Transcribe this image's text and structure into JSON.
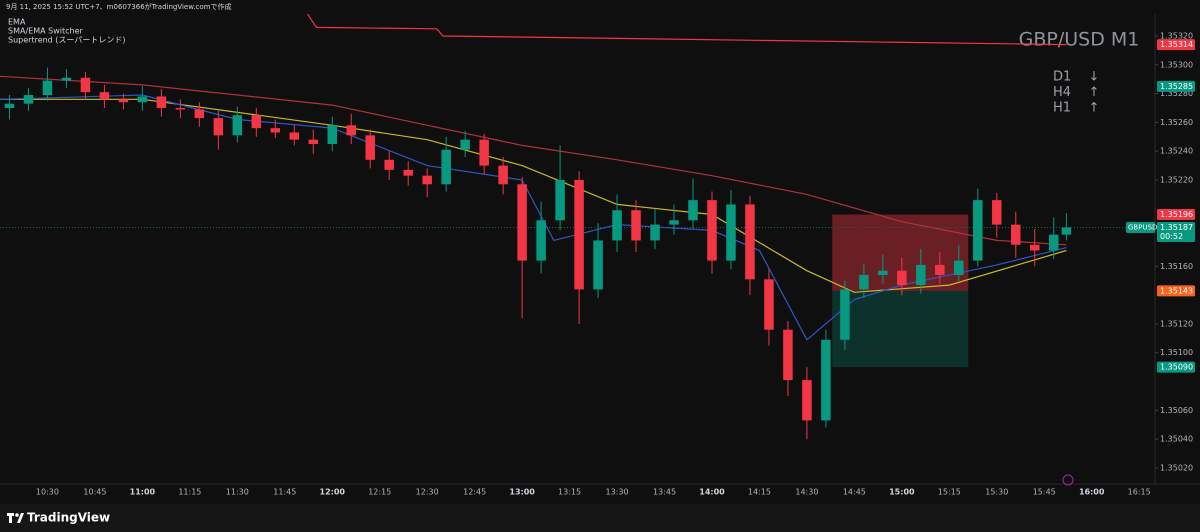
{
  "header": "9月 11, 2025 15:52 UTC+7、m0607366がTradingView.comで作成",
  "footer": "TradingView",
  "chart_data": {
    "type": "candlestick",
    "legend": [
      "EMA",
      "SMA/EMA Switcher",
      "Supertrend (スーパートレンド)"
    ],
    "title": "GBP/USD M1",
    "trend": [
      {
        "tf": "D1",
        "dir": "↓"
      },
      {
        "tf": "H4",
        "dir": "↑"
      },
      {
        "tf": "H1",
        "dir": "↑"
      }
    ],
    "up_color": "#089981",
    "down_color": "#f23645",
    "xlim": [
      "10:15",
      "16:20"
    ],
    "xticks": [
      "10:30",
      "10:45",
      "11:00",
      "11:15",
      "11:30",
      "11:45",
      "12:00",
      "12:15",
      "12:30",
      "12:45",
      "13:00",
      "13:15",
      "13:30",
      "13:45",
      "14:00",
      "14:15",
      "14:30",
      "14:45",
      "15:00",
      "15:15",
      "15:30",
      "15:45",
      "16:00",
      "16:15"
    ],
    "ylim": [
      1.35013,
      1.35345
    ],
    "yticks": [
      {
        "value": 1.3532,
        "label": "1.35320"
      },
      {
        "value": 1.353,
        "label": "1.35300"
      },
      {
        "value": 1.3528,
        "label": "1.35280"
      },
      {
        "value": 1.3526,
        "label": "1.35260"
      },
      {
        "value": 1.3524,
        "label": "1.35240"
      },
      {
        "value": 1.3522,
        "label": "1.35220"
      },
      {
        "value": 1.3516,
        "label": "1.35160"
      },
      {
        "value": 1.3512,
        "label": "1.35120"
      },
      {
        "value": 1.351,
        "label": "1.35100"
      },
      {
        "value": 1.3506,
        "label": "1.35060"
      },
      {
        "value": 1.3504,
        "label": "1.35040"
      },
      {
        "value": 1.3502,
        "label": "1.35020"
      }
    ],
    "x": [
      "10:18",
      "10:24",
      "10:30",
      "10:36",
      "10:42",
      "10:48",
      "10:54",
      "11:00",
      "11:06",
      "11:12",
      "11:18",
      "11:24",
      "11:30",
      "11:36",
      "11:42",
      "11:48",
      "11:54",
      "12:00",
      "12:06",
      "12:12",
      "12:18",
      "12:24",
      "12:30",
      "12:36",
      "12:42",
      "12:48",
      "12:54",
      "13:00",
      "13:06",
      "13:12",
      "13:18",
      "13:24",
      "13:30",
      "13:36",
      "13:42",
      "13:48",
      "13:54",
      "14:00",
      "14:06",
      "14:12",
      "14:18",
      "14:24",
      "14:30",
      "14:36",
      "14:42",
      "14:48",
      "14:54",
      "15:00",
      "15:06",
      "15:12",
      "15:18",
      "15:24",
      "15:30",
      "15:36",
      "15:42",
      "15:48",
      "15:52"
    ],
    "open": [
      1.3527,
      1.35273,
      1.35279,
      1.35289,
      1.35291,
      1.35281,
      1.35276,
      1.35274,
      1.35278,
      1.3527,
      1.35269,
      1.35263,
      1.35251,
      1.35265,
      1.35256,
      1.35253,
      1.35248,
      1.35245,
      1.35258,
      1.35251,
      1.35234,
      1.35227,
      1.35223,
      1.35217,
      1.35241,
      1.35248,
      1.3523,
      1.35217,
      1.35164,
      1.35192,
      1.3522,
      1.35144,
      1.35178,
      1.35199,
      1.35178,
      1.35189,
      1.35192,
      1.35206,
      1.35164,
      1.35203,
      1.35151,
      1.35116,
      1.35081,
      1.35053,
      1.35109,
      1.35144,
      1.35154,
      1.35157,
      1.35147,
      1.35161,
      1.35154,
      1.35164,
      1.35206,
      1.35189,
      1.35175,
      1.35171,
      1.35182
    ],
    "high": [
      1.35279,
      1.35284,
      1.35298,
      1.35297,
      1.35295,
      1.35286,
      1.3528,
      1.35285,
      1.35283,
      1.35276,
      1.35274,
      1.35268,
      1.35271,
      1.3527,
      1.35262,
      1.35258,
      1.35255,
      1.35264,
      1.35266,
      1.35255,
      1.3524,
      1.35233,
      1.35228,
      1.3525,
      1.35254,
      1.35252,
      1.35236,
      1.35222,
      1.35205,
      1.35244,
      1.35226,
      1.3519,
      1.3521,
      1.35206,
      1.352,
      1.35203,
      1.35221,
      1.35212,
      1.35213,
      1.35209,
      1.35158,
      1.35122,
      1.3509,
      1.35116,
      1.3515,
      1.35162,
      1.35168,
      1.35166,
      1.35172,
      1.3517,
      1.35175,
      1.35214,
      1.35211,
      1.35198,
      1.35186,
      1.35194,
      1.35197
    ],
    "low": [
      1.35262,
      1.35268,
      1.35275,
      1.35284,
      1.35276,
      1.3527,
      1.35269,
      1.35268,
      1.35264,
      1.35263,
      1.35257,
      1.35241,
      1.35246,
      1.3525,
      1.35249,
      1.35244,
      1.35238,
      1.3524,
      1.35245,
      1.35228,
      1.3522,
      1.35216,
      1.35208,
      1.35212,
      1.35236,
      1.35224,
      1.3521,
      1.35124,
      1.35155,
      1.35185,
      1.3512,
      1.35138,
      1.3517,
      1.3517,
      1.35172,
      1.35182,
      1.35186,
      1.35155,
      1.35158,
      1.3514,
      1.35105,
      1.3507,
      1.3504,
      1.35048,
      1.35102,
      1.35138,
      1.35148,
      1.3514,
      1.35141,
      1.35148,
      1.3515,
      1.3516,
      1.3518,
      1.35166,
      1.3516,
      1.35165,
      1.35178
    ],
    "close": [
      1.35273,
      1.35279,
      1.35289,
      1.35291,
      1.35281,
      1.35276,
      1.35274,
      1.35278,
      1.3527,
      1.35269,
      1.35263,
      1.35251,
      1.35265,
      1.35256,
      1.35253,
      1.35248,
      1.35245,
      1.35258,
      1.35251,
      1.35234,
      1.35227,
      1.35223,
      1.35217,
      1.35241,
      1.35248,
      1.3523,
      1.35217,
      1.35164,
      1.35192,
      1.3522,
      1.35144,
      1.35178,
      1.35199,
      1.35178,
      1.35189,
      1.35192,
      1.35206,
      1.35164,
      1.35203,
      1.35151,
      1.35116,
      1.35081,
      1.35053,
      1.35109,
      1.35144,
      1.35154,
      1.35157,
      1.35147,
      1.35161,
      1.35154,
      1.35164,
      1.35206,
      1.35189,
      1.35175,
      1.35171,
      1.35182,
      1.35187
    ],
    "lines": [
      {
        "color": "#b2323c",
        "x": [
          "10:15",
          "11:00",
          "12:00",
          "13:00",
          "13:30",
          "14:00",
          "14:30",
          "15:00",
          "15:30",
          "15:52"
        ],
        "values": [
          1.35292,
          1.35286,
          1.35272,
          1.35244,
          1.35234,
          1.35223,
          1.3521,
          1.35191,
          1.35178,
          1.35175
        ]
      },
      {
        "color": "#c9b92a",
        "x": [
          "10:15",
          "11:00",
          "12:00",
          "12:30",
          "13:00",
          "13:30",
          "14:00",
          "14:30",
          "14:45",
          "15:15",
          "15:52"
        ],
        "values": [
          1.35276,
          1.35276,
          1.35258,
          1.35248,
          1.3523,
          1.35203,
          1.35196,
          1.35157,
          1.35142,
          1.35147,
          1.35171
        ]
      },
      {
        "color": "#2f56c9",
        "x": [
          "10:15",
          "11:00",
          "11:30",
          "12:00",
          "12:30",
          "13:00",
          "13:10",
          "13:30",
          "14:00",
          "14:15",
          "14:30",
          "14:45",
          "15:00",
          "15:30",
          "15:52"
        ],
        "values": [
          1.35276,
          1.35279,
          1.35262,
          1.35256,
          1.3523,
          1.3522,
          1.35178,
          1.35189,
          1.35185,
          1.35171,
          1.35109,
          1.35137,
          1.35147,
          1.35161,
          1.35173
        ]
      },
      {
        "color": "#f23645",
        "x": [
          "11:52",
          "11:55",
          "12:33",
          "12:35",
          "15:52"
        ],
        "values": [
          1.35336,
          1.35326,
          1.35325,
          1.3532,
          1.35314
        ]
      }
    ],
    "position": {
      "x": [
        "14:38",
        "15:21"
      ],
      "stop": 1.35196,
      "entry": 1.35143,
      "target": 1.3509
    },
    "price_markers": [
      {
        "value": 1.35314,
        "color": "#f23645"
      },
      {
        "value": 1.35285,
        "color": "#089981"
      },
      {
        "value": 1.35196,
        "color": "#f23645"
      },
      {
        "value": 1.35143,
        "color": "#f7631b"
      },
      {
        "value": 1.3509,
        "label": "1.35090",
        "color": "#089981"
      }
    ],
    "last": {
      "symbol": "GBPUSD",
      "value": 1.35187,
      "countdown": "00:52",
      "color": "#089981"
    }
  }
}
